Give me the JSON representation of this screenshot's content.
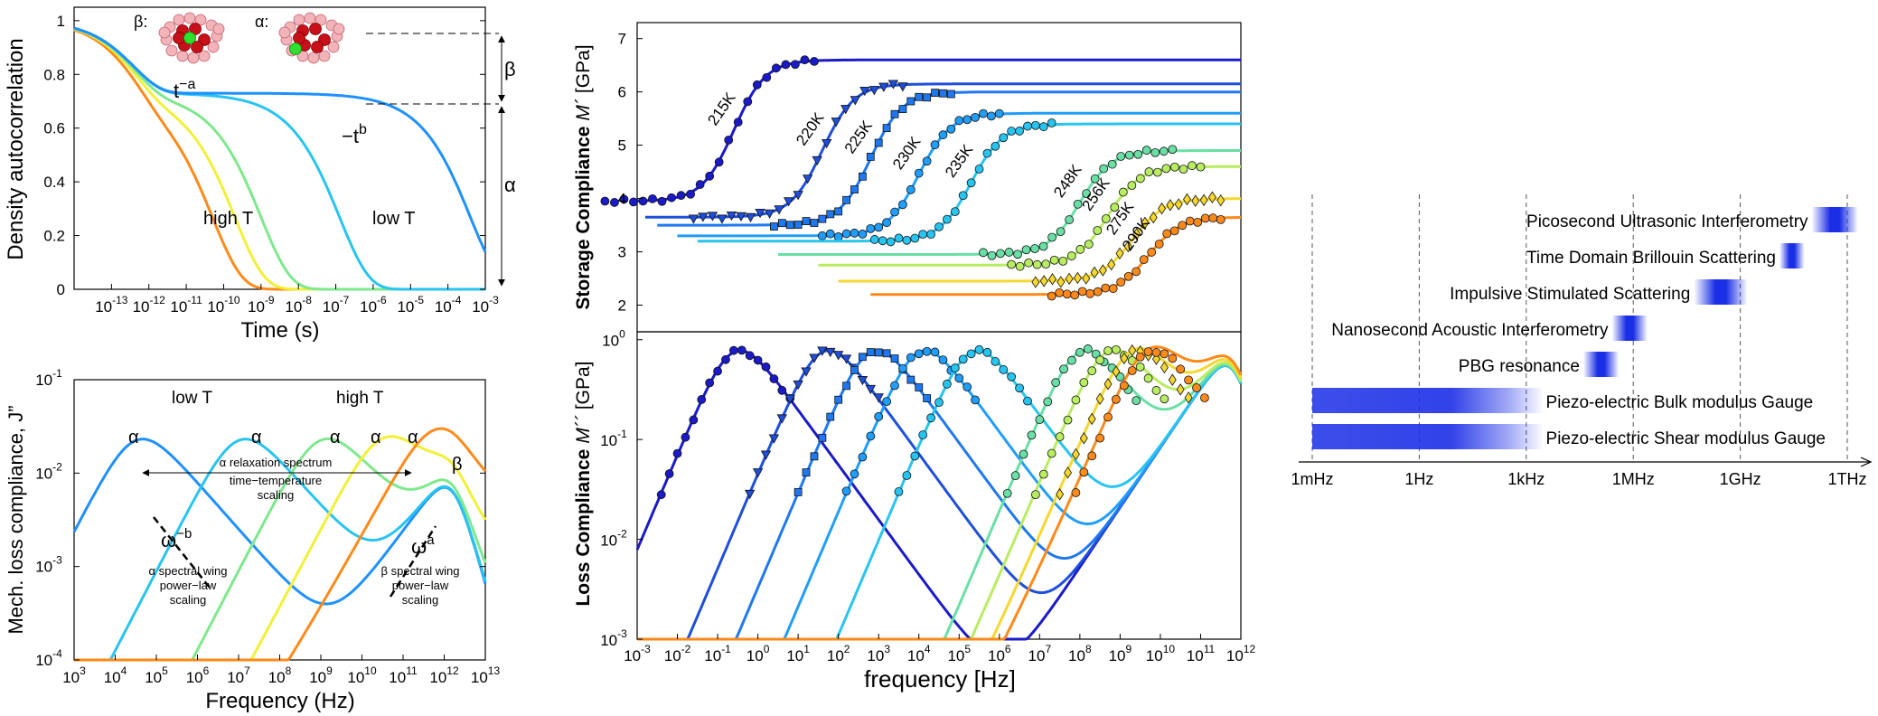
{
  "colors": {
    "temp_scale": [
      "#1a1ac8",
      "#1f5fe0",
      "#1e90ff",
      "#28c4f0",
      "#7ee88c",
      "#f2f036",
      "#ff8a1a"
    ],
    "bar": "#1a2ee6",
    "axis": "#000000"
  },
  "chart_data": [
    {
      "id": "density",
      "type": "line",
      "xlabel": "Time (s)",
      "ylabel": "Density autocorrelation",
      "xscale": "log",
      "xlim": [
        1e-14,
        0.001
      ],
      "ylim": [
        0,
        1.05
      ],
      "x_ticks": [
        "10",
        "10",
        "10",
        "10",
        "10",
        "10",
        "10",
        "10",
        "10",
        "10",
        "10"
      ],
      "x_tick_exps": [
        "-13",
        "-12",
        "-11",
        "-10",
        "-9",
        "-8",
        "-7",
        "-6",
        "-5",
        "-4",
        "-3"
      ],
      "y_ticks": [
        "0",
        "0.2",
        "0.4",
        "0.6",
        "0.8",
        "1"
      ],
      "plateau": 0.73,
      "series_tau_log10": [
        -10.3,
        -9.7,
        -9.0,
        -6.9,
        -3.4
      ],
      "annotations": {
        "beta_label": "β:",
        "alpha_label": "α:",
        "t_a_base": "t",
        "t_a_exp": "−a",
        "t_b_base": "−t",
        "t_b_exp": "b",
        "high_t": "high T",
        "low_t": "low T",
        "beta": "β",
        "alpha": "α"
      }
    },
    {
      "id": "loss",
      "type": "line",
      "xlabel": "Frequency (Hz)",
      "ylabel": "Mech. loss compliance, J”",
      "xscale": "log",
      "yscale": "log",
      "xlim": [
        1000.0,
        10000000000000.0
      ],
      "ylim": [
        0.0001,
        0.1
      ],
      "x_ticks": [
        "10",
        "10",
        "10",
        "10",
        "10",
        "10",
        "10",
        "10",
        "10",
        "10",
        "10"
      ],
      "x_tick_exps": [
        "3",
        "4",
        "5",
        "6",
        "7",
        "8",
        "9",
        "10",
        "11",
        "12",
        "13"
      ],
      "y_ticks": [
        "10",
        "10",
        "10",
        "10"
      ],
      "y_tick_exps": [
        "-4",
        "-3",
        "-2",
        "-1"
      ],
      "alpha_peak_log10f": [
        4.5,
        7.0,
        9.0,
        10.5,
        11.7
      ],
      "annotations": {
        "low_t": "low T",
        "high_t": "high T",
        "alpha": "α",
        "beta": "β",
        "spectrum_1": "α relaxation spectrum",
        "spectrum_2": "time−temperature",
        "spectrum_3": "scaling",
        "omega_b_base": "ω",
        "omega_b_exp": "−b",
        "omega_a_base": "ω",
        "omega_a_exp": "a",
        "alpha_wing_1": "α spectral wing",
        "alpha_wing_2": "power−law",
        "alpha_wing_3": "scaling",
        "beta_wing_1": "β spectral wing",
        "beta_wing_2": "power−law",
        "beta_wing_3": "scaling"
      }
    },
    {
      "id": "storage",
      "type": "scatter",
      "ylabel_1": "Storage Compliance",
      "ylabel_m": "M´",
      "ylabel_2": "[GPa]",
      "xscale": "log",
      "xlim": [
        0.001,
        1000000000000.0
      ],
      "ylim": [
        1.5,
        7.3
      ],
      "y_ticks": [
        "2",
        "3",
        "4",
        "5",
        "6",
        "7"
      ],
      "series": [
        {
          "name": "215K",
          "low": 3.95,
          "high": 6.6,
          "mid_log10f": -0.6
        },
        {
          "name": "220K",
          "low": 3.65,
          "high": 6.15,
          "mid_log10f": 1.6
        },
        {
          "name": "225K",
          "low": 3.5,
          "high": 6.0,
          "mid_log10f": 2.8
        },
        {
          "name": "230K",
          "low": 3.3,
          "high": 5.6,
          "mid_log10f": 4.0
        },
        {
          "name": "235K",
          "low": 3.2,
          "high": 5.4,
          "mid_log10f": 5.3
        },
        {
          "name": "248K",
          "low": 2.95,
          "high": 4.9,
          "mid_log10f": 8.0
        },
        {
          "name": "256K",
          "low": 2.75,
          "high": 4.6,
          "mid_log10f": 8.7
        },
        {
          "name": "275K",
          "low": 2.45,
          "high": 4.0,
          "mid_log10f": 9.3
        },
        {
          "name": "290K",
          "low": 2.2,
          "high": 3.65,
          "mid_log10f": 9.7
        }
      ]
    },
    {
      "id": "losscomp",
      "type": "scatter",
      "xlabel": "frequency [Hz]",
      "ylabel_1": "Loss Compliance",
      "ylabel_m": "M´´",
      "ylabel_2": "[GPa]",
      "xscale": "log",
      "yscale": "log",
      "xlim": [
        0.001,
        1000000000000.0
      ],
      "ylim": [
        0.001,
        1.2
      ],
      "x_ticks": [
        "10",
        "10",
        "10",
        "10",
        "10",
        "10",
        "10",
        "10",
        "10",
        "10",
        "10",
        "10",
        "10",
        "10",
        "10",
        "10"
      ],
      "x_tick_exps": [
        "-3",
        "-2",
        "-1",
        "0",
        "1",
        "2",
        "3",
        "4",
        "5",
        "6",
        "7",
        "8",
        "9",
        "10",
        "11",
        "12"
      ],
      "y_ticks": [
        "10",
        "10",
        "10",
        "10"
      ],
      "y_tick_exps": [
        "-3",
        "-2",
        "-1",
        "0"
      ],
      "peak_log10f": [
        -0.6,
        1.6,
        2.8,
        4.0,
        5.3,
        8.0,
        8.7,
        9.3,
        9.7
      ]
    },
    {
      "id": "techniques",
      "type": "bar",
      "xscale": "log",
      "x_ticks": [
        "1mHz",
        "1Hz",
        "1kHz",
        "1MHz",
        "1GHz",
        "1THz"
      ],
      "bars": [
        {
          "name": "Picosecond Ultrasonic Interferometry",
          "from_log10f": 11.0,
          "to_log10f": 12.3
        },
        {
          "name": "Time Domain Brillouin Scattering",
          "from_log10f": 10.1,
          "to_log10f": 10.8
        },
        {
          "name": "Impulsive Stimulated Scattering",
          "from_log10f": 7.7,
          "to_log10f": 9.2
        },
        {
          "name": "Nanosecond Acoustic Interferometry",
          "from_log10f": 5.4,
          "to_log10f": 6.4
        },
        {
          "name": "PBG resonance",
          "from_log10f": 4.6,
          "to_log10f": 5.6
        },
        {
          "name": "Piezo-electric Bulk modulus Gauge",
          "from_log10f": -3.0,
          "to_log10f": 3.5
        },
        {
          "name": "Piezo-electric Shear modulus Gauge",
          "from_log10f": -3.0,
          "to_log10f": 3.5
        }
      ]
    }
  ]
}
